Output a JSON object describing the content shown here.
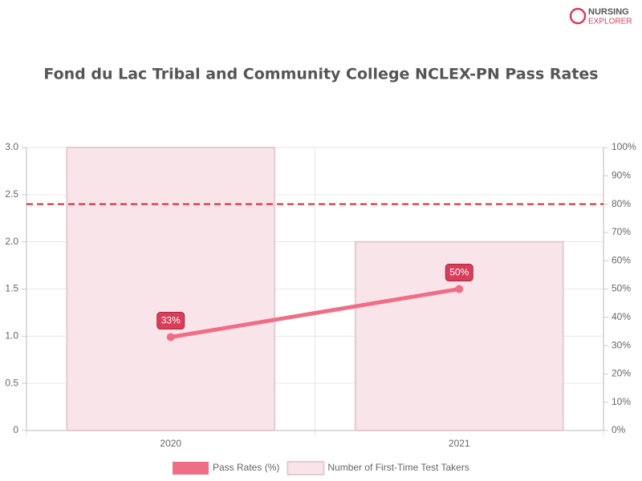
{
  "logo": {
    "line1": "NURSING",
    "line2": "EXPLORER"
  },
  "chart_data": {
    "type": "bar",
    "title": "Fond du Lac Tribal and Community College NCLEX-PN Pass Rates",
    "categories": [
      "2020",
      "2021"
    ],
    "series": [
      {
        "name": "Pass Rates (%)",
        "type": "line",
        "axis": "y2",
        "color": "#f06e85",
        "values": [
          33,
          50
        ],
        "value_labels": [
          "33%",
          "50%"
        ]
      },
      {
        "name": "Number of First-Time Test Takers",
        "type": "bar",
        "color": "#f9e4ea",
        "values": [
          3,
          2
        ]
      }
    ],
    "ylim": [
      0,
      3
    ],
    "yticks": [
      0,
      0.5,
      {
        "value": 1,
        "label": "1.0"
      },
      1.5,
      {
        "value": 2,
        "label": "2.0"
      },
      2.5,
      {
        "value": 3,
        "label": "3.0"
      }
    ],
    "y2lim": [
      0,
      100
    ],
    "y2ticks": [
      {
        "value": 0,
        "label": "0%"
      },
      {
        "value": 10,
        "label": "10%"
      },
      {
        "value": 20,
        "label": "20%"
      },
      {
        "value": 30,
        "label": "30%"
      },
      {
        "value": 40,
        "label": "40%"
      },
      {
        "value": 50,
        "label": "50%"
      },
      {
        "value": 60,
        "label": "60%"
      },
      {
        "value": 70,
        "label": "70%"
      },
      {
        "value": 80,
        "label": "80%"
      },
      {
        "value": 90,
        "label": "90%"
      },
      {
        "value": 100,
        "label": "100%"
      }
    ],
    "reference_line": {
      "value": 80,
      "axis": "y2",
      "color": "#e0202a"
    },
    "grid": true,
    "legend": "bottom"
  }
}
